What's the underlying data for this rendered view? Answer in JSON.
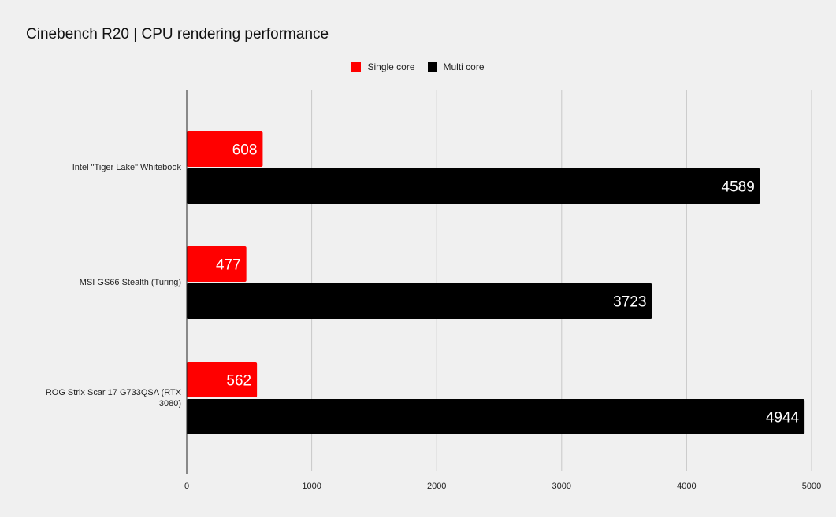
{
  "chart_data": {
    "type": "bar",
    "orientation": "horizontal",
    "title": "Cinebench R20 | CPU rendering performance",
    "categories": [
      "Intel \"Tiger Lake\" Whitebook",
      "MSI GS66 Stealth (Turing)",
      "ROG Strix Scar 17 G733QSA (RTX 3080)"
    ],
    "series": [
      {
        "name": "Single core",
        "color": "#ff0000",
        "values": [
          608,
          477,
          562
        ]
      },
      {
        "name": "Multi core",
        "color": "#000000",
        "values": [
          4589,
          3723,
          4944
        ]
      }
    ],
    "xlim": [
      0,
      5000
    ],
    "xticks": [
      0,
      1000,
      2000,
      3000,
      4000,
      5000
    ],
    "grid": true,
    "legend_position": "top-center",
    "data_labels": true
  }
}
